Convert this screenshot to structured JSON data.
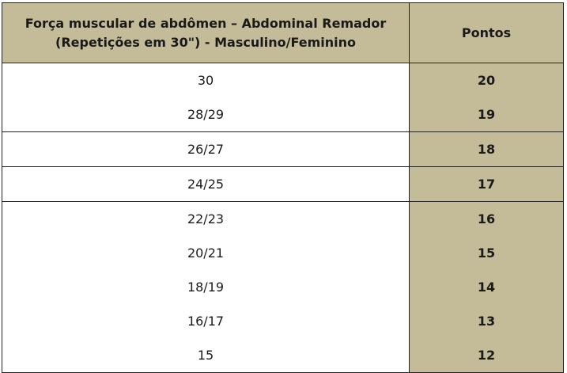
{
  "table": {
    "header": {
      "col1": "Força muscular de abdômen – Abdominal Remador (Repetições em 30\") - Masculino/Feminino",
      "col2": "Pontos"
    },
    "rows": [
      {
        "reps": "30",
        "points": "20"
      },
      {
        "reps": "28/29",
        "points": "19"
      },
      {
        "reps": "26/27",
        "points": "18"
      },
      {
        "reps": "24/25",
        "points": "17"
      },
      {
        "reps": "22/23",
        "points": "16"
      },
      {
        "reps": "20/21",
        "points": "15"
      },
      {
        "reps": "18/19",
        "points": "14"
      },
      {
        "reps": "16/17",
        "points": "13"
      },
      {
        "reps": "15",
        "points": "12"
      }
    ],
    "colors": {
      "header_bg": "#c4bc98",
      "border": "#222222"
    }
  }
}
